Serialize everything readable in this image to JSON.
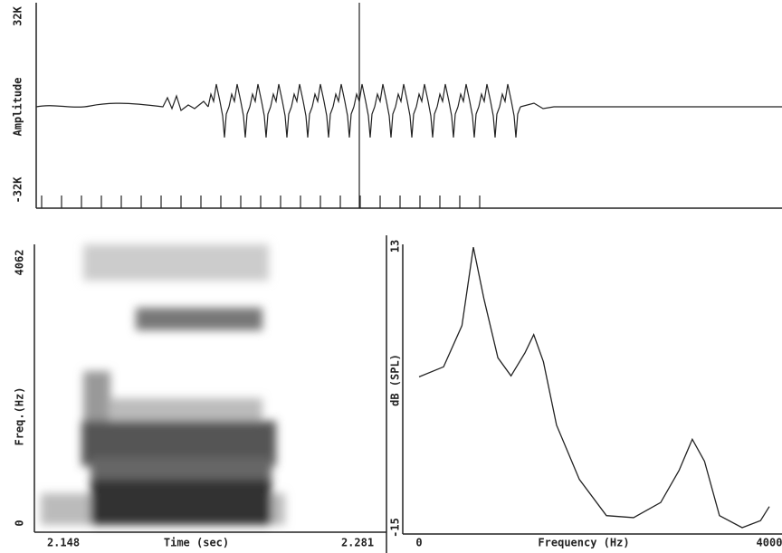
{
  "chart_data": [
    {
      "type": "waveform",
      "ylabel": "Amplitude",
      "ylim": [
        -32000,
        32000
      ],
      "yticks": [
        {
          "value": -32000,
          "label": "-32K"
        },
        {
          "value": 32000,
          "label": "32K"
        }
      ]
    },
    {
      "type": "spectrogram",
      "xlabel": "Time (sec)",
      "ylabel": "Freq.(Hz)",
      "xlim": [
        2.148,
        2.281
      ],
      "xticks": [
        2.148,
        2.281
      ],
      "ylim": [
        0,
        4062
      ],
      "yticks": [
        0,
        4062
      ]
    },
    {
      "type": "line",
      "xlabel": "Frequency (Hz)",
      "ylabel": "dB (SPL)",
      "color": "#222222",
      "x": [
        0,
        280,
        490,
        620,
        740,
        900,
        1050,
        1210,
        1310,
        1420,
        1570,
        1830,
        2140,
        2450,
        2760,
        2970,
        3120,
        3260,
        3430,
        3690,
        3900,
        4000
      ],
      "values": [
        0.0,
        1.0,
        5.1,
        12.9,
        7.8,
        1.9,
        0.1,
        2.4,
        4.2,
        1.5,
        -4.8,
        -10.2,
        -13.8,
        -14.0,
        -12.5,
        -9.3,
        -6.2,
        -8.4,
        -13.8,
        -15.0,
        -14.3,
        -12.9
      ],
      "xlim": [
        0,
        4000
      ],
      "xticks": [
        0,
        4000
      ],
      "ylim": [
        -15,
        13
      ],
      "yticks": [
        -15,
        13
      ]
    }
  ]
}
